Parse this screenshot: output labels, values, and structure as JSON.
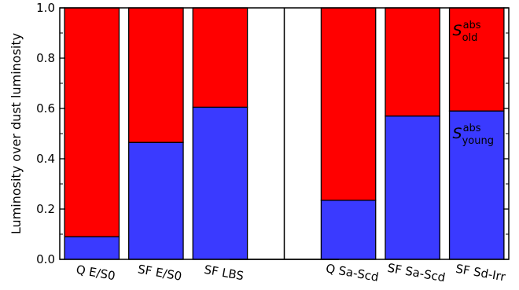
{
  "chart_data": {
    "type": "bar",
    "stacked": true,
    "categories": [
      "Q E/S0",
      "SF E/S0",
      "SF LBS",
      "",
      "Q Sa-Scd",
      "SF Sa-Scd",
      "SF Sd-Irr"
    ],
    "series": [
      {
        "name": "S_young^abs",
        "color": "#3a3aff",
        "values": [
          0.09,
          0.465,
          0.605,
          null,
          0.235,
          0.57,
          0.59
        ]
      },
      {
        "name": "S_old^abs",
        "color": "#ff0000",
        "values": [
          0.91,
          0.535,
          0.395,
          null,
          0.765,
          0.43,
          0.41
        ]
      }
    ],
    "ylabel": "Luminosity over dust luminosity",
    "xlabel": "",
    "ylim": [
      0,
      1.0
    ],
    "yticks": [
      "0.0",
      "0.2",
      "0.4",
      "0.6",
      "0.8",
      "1.0"
    ],
    "divider_after_category": 3,
    "annotations": [
      {
        "base": "S",
        "sup": "abs",
        "sub": "old"
      },
      {
        "base": "S",
        "sup": "abs",
        "sub": "young"
      }
    ],
    "grid": false,
    "legend": "none"
  }
}
